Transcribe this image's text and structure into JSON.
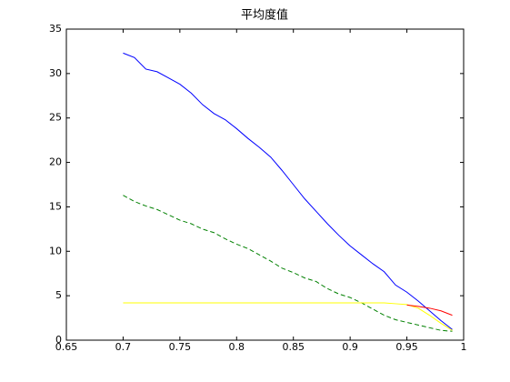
{
  "chart_data": {
    "type": "line",
    "title": "平均度值",
    "x": [
      0.7,
      0.71,
      0.72,
      0.73,
      0.74,
      0.75,
      0.76,
      0.77,
      0.78,
      0.79,
      0.8,
      0.81,
      0.82,
      0.83,
      0.84,
      0.85,
      0.86,
      0.87,
      0.88,
      0.89,
      0.9,
      0.91,
      0.92,
      0.93,
      0.94,
      0.95,
      0.96,
      0.97,
      0.98,
      0.99
    ],
    "series": [
      {
        "color": "#0000ff",
        "style": "solid",
        "values": [
          32.3,
          31.8,
          30.5,
          30.2,
          29.5,
          28.8,
          27.8,
          26.5,
          25.5,
          24.8,
          23.8,
          22.7,
          21.7,
          20.6,
          19.1,
          17.5,
          15.9,
          14.5,
          13.1,
          11.8,
          10.6,
          9.6,
          8.6,
          7.7,
          6.2,
          5.4,
          4.4,
          3.3,
          2.2,
          1.2
        ]
      },
      {
        "color": "#008000",
        "style": "dashed",
        "values": [
          16.3,
          15.6,
          15.1,
          14.7,
          14.1,
          13.5,
          13.1,
          12.5,
          12.1,
          11.4,
          10.8,
          10.3,
          9.6,
          8.9,
          8.1,
          7.6,
          7.0,
          6.6,
          5.8,
          5.2,
          4.8,
          4.2,
          3.5,
          2.8,
          2.3,
          2.0,
          1.7,
          1.4,
          1.1,
          1.0
        ]
      },
      {
        "color": "#ffff00",
        "style": "solid",
        "values": [
          4.2,
          4.2,
          4.2,
          4.2,
          4.2,
          4.2,
          4.2,
          4.2,
          4.2,
          4.2,
          4.2,
          4.2,
          4.2,
          4.2,
          4.2,
          4.2,
          4.2,
          4.2,
          4.2,
          4.2,
          4.2,
          4.2,
          4.2,
          4.2,
          4.1,
          4.0,
          3.6,
          2.8,
          1.9,
          1.1
        ]
      },
      {
        "color": "#ff0000",
        "style": "solid",
        "values": [
          null,
          null,
          null,
          null,
          null,
          null,
          null,
          null,
          null,
          null,
          null,
          null,
          null,
          null,
          null,
          null,
          null,
          null,
          null,
          null,
          null,
          null,
          null,
          null,
          null,
          3.95,
          3.8,
          3.6,
          3.3,
          2.8
        ]
      }
    ],
    "xlim": [
      0.65,
      1
    ],
    "xticks": [
      0.65,
      0.7,
      0.75,
      0.8,
      0.85,
      0.9,
      0.95,
      1
    ],
    "ylim": [
      0,
      35
    ],
    "yticks": [
      0,
      5,
      10,
      15,
      20,
      25,
      30,
      35
    ],
    "grid": false
  }
}
